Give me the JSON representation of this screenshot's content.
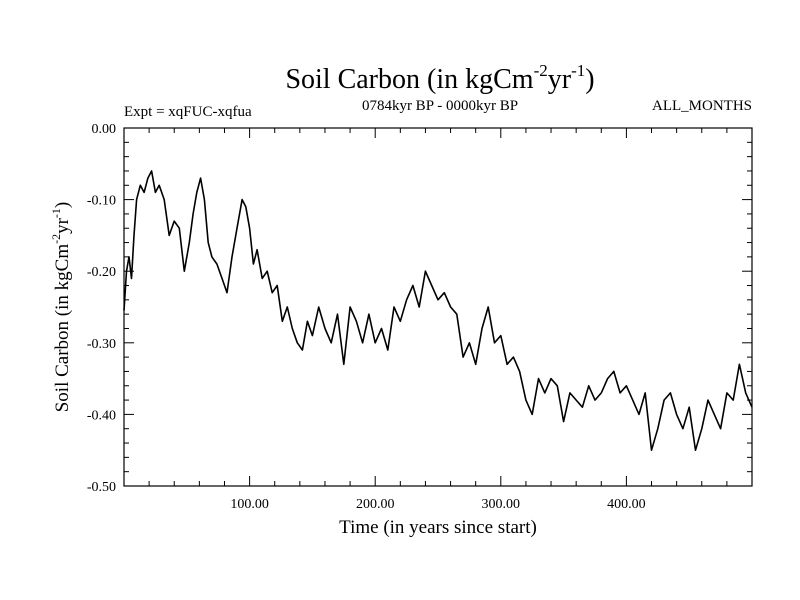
{
  "chart_data": {
    "type": "line",
    "title": {
      "text": "Soil Carbon (in kgCm",
      "sup1": "-2",
      "mid": "yr",
      "sup2": "-1",
      "end": ")"
    },
    "subtitle_left": "Expt = xqFUC-xqfua",
    "subtitle_center": "0784kyr BP - 0000kyr BP",
    "subtitle_right": "ALL_MONTHS",
    "xlabel": "Time (in years since start)",
    "ylabel": {
      "text": "Soil Carbon (in kgCm",
      "sup1": "-2",
      "mid": "yr",
      "sup2": "-1",
      "end": ")"
    },
    "xlim": [
      0,
      500
    ],
    "ylim": [
      -0.5,
      0.0
    ],
    "x_ticks": [
      100,
      200,
      300,
      400
    ],
    "x_tick_labels": [
      "100.00",
      "200.00",
      "300.00",
      "400.00"
    ],
    "y_ticks": [
      0.0,
      -0.1,
      -0.2,
      -0.3,
      -0.4,
      -0.5
    ],
    "y_tick_labels": [
      "0.00",
      "-0.10",
      "-0.20",
      "-0.30",
      "-0.40",
      "-0.50"
    ],
    "grid": false,
    "line_color": "#000000",
    "series": [
      {
        "name": "Soil Carbon",
        "x": [
          0,
          2,
          4,
          6,
          8,
          10,
          13,
          16,
          19,
          22,
          25,
          28,
          32,
          36,
          40,
          44,
          48,
          52,
          55,
          58,
          61,
          64,
          67,
          70,
          74,
          78,
          82,
          86,
          90,
          94,
          97,
          100,
          103,
          106,
          110,
          114,
          118,
          122,
          126,
          130,
          134,
          138,
          142,
          146,
          150,
          155,
          160,
          165,
          170,
          175,
          180,
          185,
          190,
          195,
          200,
          205,
          210,
          215,
          220,
          225,
          230,
          235,
          240,
          245,
          250,
          255,
          260,
          265,
          270,
          275,
          280,
          285,
          290,
          295,
          300,
          305,
          310,
          315,
          320,
          325,
          330,
          335,
          340,
          345,
          350,
          355,
          360,
          365,
          370,
          375,
          380,
          385,
          390,
          395,
          400,
          405,
          410,
          415,
          420,
          425,
          430,
          435,
          440,
          445,
          450,
          455,
          460,
          465,
          470,
          475,
          480,
          485,
          490,
          495,
          500
        ],
        "values": [
          -0.255,
          -0.2,
          -0.18,
          -0.21,
          -0.15,
          -0.1,
          -0.08,
          -0.09,
          -0.07,
          -0.06,
          -0.09,
          -0.08,
          -0.1,
          -0.15,
          -0.13,
          -0.14,
          -0.2,
          -0.16,
          -0.12,
          -0.09,
          -0.07,
          -0.1,
          -0.16,
          -0.18,
          -0.19,
          -0.21,
          -0.23,
          -0.18,
          -0.14,
          -0.1,
          -0.11,
          -0.14,
          -0.19,
          -0.17,
          -0.21,
          -0.2,
          -0.23,
          -0.22,
          -0.27,
          -0.25,
          -0.28,
          -0.3,
          -0.31,
          -0.27,
          -0.29,
          -0.25,
          -0.28,
          -0.3,
          -0.26,
          -0.33,
          -0.25,
          -0.27,
          -0.3,
          -0.26,
          -0.3,
          -0.28,
          -0.31,
          -0.25,
          -0.27,
          -0.24,
          -0.22,
          -0.25,
          -0.2,
          -0.22,
          -0.24,
          -0.23,
          -0.25,
          -0.26,
          -0.32,
          -0.3,
          -0.33,
          -0.28,
          -0.25,
          -0.3,
          -0.29,
          -0.33,
          -0.32,
          -0.34,
          -0.38,
          -0.4,
          -0.35,
          -0.37,
          -0.35,
          -0.36,
          -0.41,
          -0.37,
          -0.38,
          -0.39,
          -0.36,
          -0.38,
          -0.37,
          -0.35,
          -0.34,
          -0.37,
          -0.36,
          -0.38,
          -0.4,
          -0.37,
          -0.45,
          -0.42,
          -0.38,
          -0.37,
          -0.4,
          -0.42,
          -0.39,
          -0.45,
          -0.42,
          -0.38,
          -0.4,
          -0.42,
          -0.37,
          -0.38,
          -0.33,
          -0.37,
          -0.39
        ]
      }
    ]
  }
}
